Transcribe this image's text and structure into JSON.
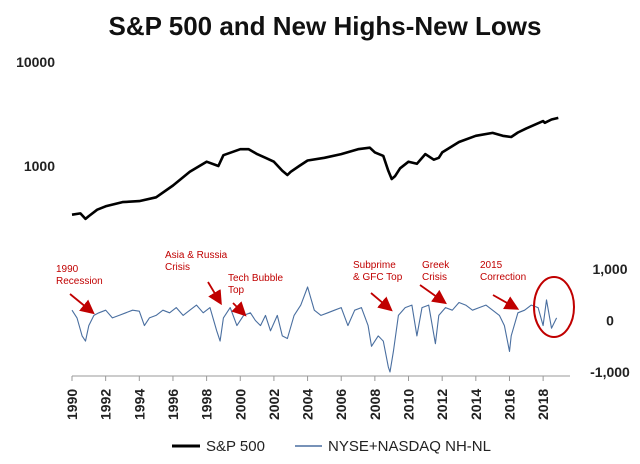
{
  "chart_data": {
    "type": "line",
    "title": "S&P 500 and New Highs-New Lows",
    "x_ticks": [
      "1990",
      "1992",
      "1994",
      "1996",
      "1998",
      "2000",
      "2002",
      "2004",
      "2006",
      "2008",
      "2010",
      "2012",
      "2014",
      "2016",
      "2018"
    ],
    "xlim": [
      1990,
      2019.3
    ],
    "left_axis": {
      "scale": "log",
      "ylim": [
        200,
        10000
      ],
      "ticks": [
        "10000",
        "1000"
      ],
      "tick_values": [
        10000,
        1000
      ]
    },
    "right_axis": {
      "scale": "linear",
      "ylim": [
        -1000,
        1000
      ],
      "ticks": [
        "1,000",
        "0",
        "-1,000"
      ],
      "tick_values": [
        1000,
        0,
        -1000
      ]
    },
    "series": [
      {
        "name": "S&P 500",
        "color": "#000000",
        "axis": "left",
        "x": [
          1990.0,
          1990.5,
          1990.8,
          1991.0,
          1991.5,
          1992,
          1993,
          1994,
          1995,
          1996,
          1997,
          1998,
          1998.7,
          1999,
          2000,
          2000.5,
          2001,
          2001.5,
          2002,
          2002.5,
          2002.8,
          2003,
          2003.5,
          2004,
          2005,
          2006,
          2007,
          2007.7,
          2008,
          2008.5,
          2008.8,
          2009.0,
          2009.2,
          2009.5,
          2010,
          2010.5,
          2011,
          2011.5,
          2011.8,
          2012,
          2013,
          2014,
          2015,
          2015.6,
          2016.1,
          2016.5,
          2017,
          2018,
          2018.1,
          2018.5,
          2018.9
        ],
        "values": [
          340,
          350,
          310,
          330,
          380,
          410,
          450,
          460,
          500,
          650,
          880,
          1100,
          1000,
          1270,
          1450,
          1450,
          1300,
          1200,
          1100,
          900,
          820,
          880,
          1000,
          1130,
          1200,
          1300,
          1450,
          1500,
          1350,
          1250,
          900,
          750,
          800,
          950,
          1100,
          1050,
          1300,
          1150,
          1200,
          1350,
          1700,
          1950,
          2080,
          1950,
          1900,
          2100,
          2300,
          2700,
          2600,
          2800,
          2900
        ]
      },
      {
        "name": "NYSE+NASDAQ NH-NL",
        "color": "#4a6fa0",
        "axis": "right",
        "x": [
          1990.0,
          1990.3,
          1990.6,
          1990.8,
          1991.0,
          1991.3,
          1991.6,
          1992.0,
          1992.4,
          1992.8,
          1993.2,
          1993.6,
          1994.0,
          1994.3,
          1994.6,
          1995.0,
          1995.4,
          1995.8,
          1996.2,
          1996.6,
          1997.0,
          1997.4,
          1997.8,
          1998.2,
          1998.6,
          1998.8,
          1999.0,
          1999.4,
          1999.8,
          2000.2,
          2000.6,
          2000.9,
          2001.2,
          2001.5,
          2001.8,
          2002.2,
          2002.5,
          2002.8,
          2003.2,
          2003.6,
          2004.0,
          2004.4,
          2004.8,
          2005.2,
          2005.6,
          2006.0,
          2006.4,
          2006.8,
          2007.2,
          2007.6,
          2007.8,
          2008.2,
          2008.5,
          2008.8,
          2008.9,
          2009.1,
          2009.4,
          2009.8,
          2010.2,
          2010.5,
          2010.8,
          2011.2,
          2011.6,
          2011.8,
          2012.2,
          2012.6,
          2013.0,
          2013.4,
          2013.8,
          2014.2,
          2014.6,
          2015.0,
          2015.4,
          2015.7,
          2016.0,
          2016.1,
          2016.5,
          2016.9,
          2017.3,
          2017.7,
          2018.0,
          2018.2,
          2018.5,
          2018.8
        ],
        "values": [
          200,
          50,
          -300,
          -400,
          -100,
          100,
          150,
          200,
          50,
          100,
          150,
          200,
          180,
          -100,
          50,
          100,
          200,
          150,
          250,
          100,
          200,
          300,
          150,
          250,
          -200,
          -400,
          50,
          250,
          -100,
          100,
          150,
          0,
          -100,
          100,
          -200,
          100,
          -300,
          -350,
          100,
          300,
          650,
          200,
          100,
          150,
          200,
          250,
          -100,
          200,
          250,
          -100,
          -500,
          -300,
          -400,
          -900,
          -1000,
          -600,
          100,
          250,
          300,
          -300,
          250,
          300,
          -450,
          100,
          250,
          200,
          350,
          300,
          200,
          250,
          300,
          200,
          100,
          -100,
          -600,
          -300,
          150,
          200,
          300,
          250,
          -100,
          400,
          -150,
          50
        ]
      }
    ],
    "annotations": [
      {
        "text": [
          "1990",
          "Recession"
        ]
      },
      {
        "text": [
          "Asia & Russia",
          "Crisis"
        ]
      },
      {
        "text": [
          "Tech Bubble",
          "Top"
        ]
      },
      {
        "text": [
          "Subprime",
          "& GFC Top"
        ]
      },
      {
        "text": [
          "Greek",
          "Crisis"
        ]
      },
      {
        "text": [
          "2015",
          "Correction"
        ]
      }
    ],
    "legend": {
      "position": "bottom",
      "items": [
        "S&P 500",
        "NYSE+NASDAQ NH-NL"
      ]
    }
  }
}
